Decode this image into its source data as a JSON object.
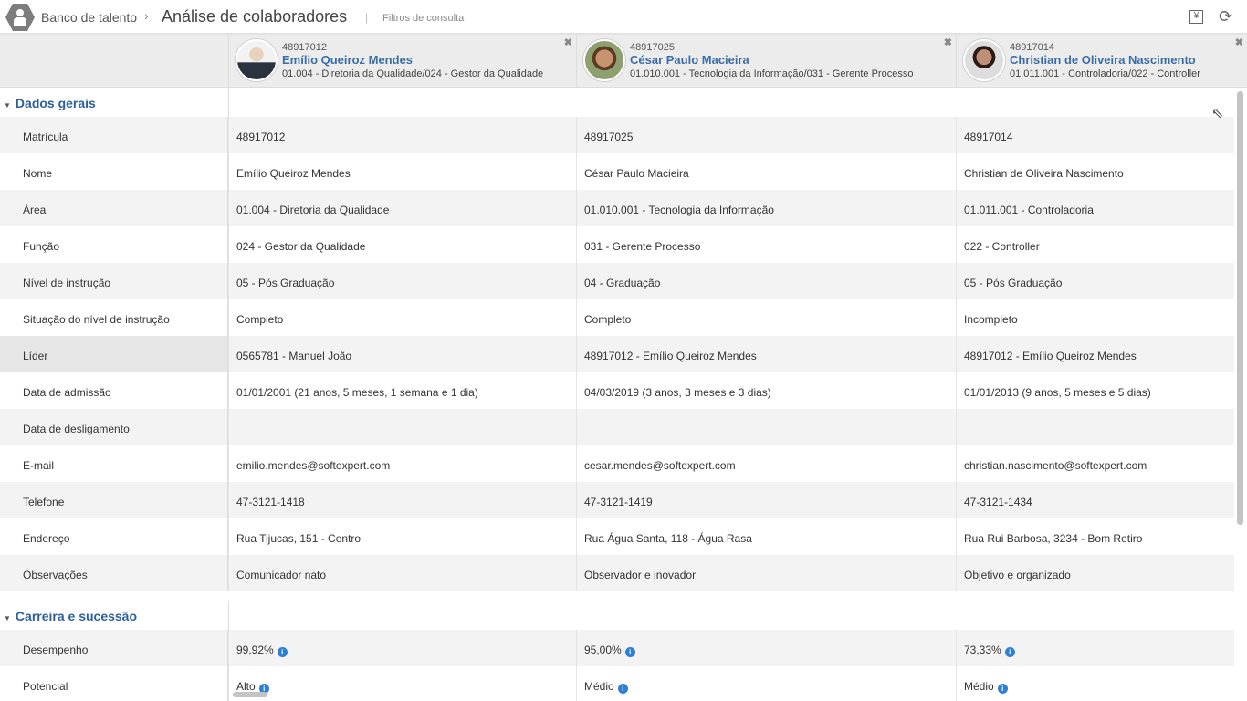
{
  "header": {
    "breadcrumb": "Banco de talento",
    "title": "Análise de colaboradores",
    "filters_label": "Filtros de consulta"
  },
  "employees": [
    {
      "id": "48917012",
      "name": "Emílio Queiroz Mendes",
      "area": "01.004 - Diretoria da Qualidade/024 - Gestor da Qualidade"
    },
    {
      "id": "48917025",
      "name": "César Paulo Macieira",
      "area": "01.010.001 - Tecnologia da Informação/031 - Gerente Processo"
    },
    {
      "id": "48917014",
      "name": "Christian de Oliveira Nascimento",
      "area": "01.011.001 - Controladoria/022 - Controller"
    }
  ],
  "sections": [
    {
      "title": "Dados gerais",
      "rows": [
        {
          "label": "Matrícula",
          "values": [
            "48917012",
            "48917025",
            "48917014"
          ]
        },
        {
          "label": "Nome",
          "values": [
            "Emílio Queiroz Mendes",
            "César Paulo Macieira",
            "Christian de Oliveira Nascimento"
          ]
        },
        {
          "label": "Área",
          "values": [
            "01.004 - Diretoria da Qualidade",
            "01.010.001 - Tecnologia da Informação",
            "01.011.001 - Controladoria"
          ]
        },
        {
          "label": "Função",
          "values": [
            "024 - Gestor da Qualidade",
            "031 - Gerente Processo",
            "022 - Controller"
          ]
        },
        {
          "label": "Nível de instrução",
          "values": [
            "05 - Pós Graduação",
            "04 - Graduação",
            "05 - Pós Graduação"
          ]
        },
        {
          "label": "Situação do nível de instrução",
          "values": [
            "Completo",
            "Completo",
            "Incompleto"
          ]
        },
        {
          "label": "Líder",
          "values": [
            "0565781 - Manuel João",
            "48917012 - Emílio Queiroz Mendes",
            "48917012 - Emílio Queiroz Mendes"
          ]
        },
        {
          "label": "Data de admissão",
          "values": [
            "01/01/2001 (21 anos, 5 meses, 1 semana e 1 dia)",
            "04/03/2019 (3 anos, 3 meses e 3 dias)",
            "01/01/2013 (9 anos, 5 meses e 5 dias)"
          ]
        },
        {
          "label": "Data de desligamento",
          "values": [
            "",
            "",
            ""
          ]
        },
        {
          "label": "E-mail",
          "values": [
            "emilio.mendes@softexpert.com",
            "cesar.mendes@softexpert.com",
            "christian.nascimento@softexpert.com"
          ]
        },
        {
          "label": "Telefone",
          "values": [
            "47-3121-1418",
            "47-3121-1419",
            "47-3121-1434"
          ]
        },
        {
          "label": "Endereço",
          "values": [
            "Rua Tijucas, 151 - Centro",
            "Rua Água Santa, 118 - Água Rasa",
            "Rua Rui Barbosa, 3234 - Bom Retiro"
          ]
        },
        {
          "label": "Observações",
          "values": [
            "Comunicador nato",
            "Observador e inovador",
            "Objetivo e organizado"
          ]
        }
      ]
    },
    {
      "title": "Carreira e sucessão",
      "rows": [
        {
          "label": "Desempenho",
          "values": [
            "99,92%",
            "95,00%",
            "73,33%"
          ],
          "info": true
        },
        {
          "label": "Potencial",
          "values": [
            "Alto",
            "Médio",
            "Médio"
          ],
          "info": true
        }
      ]
    }
  ],
  "colors": {
    "accent": "#2c5f9e",
    "name": "#3a6ea5",
    "info": "#2f7ed8"
  }
}
